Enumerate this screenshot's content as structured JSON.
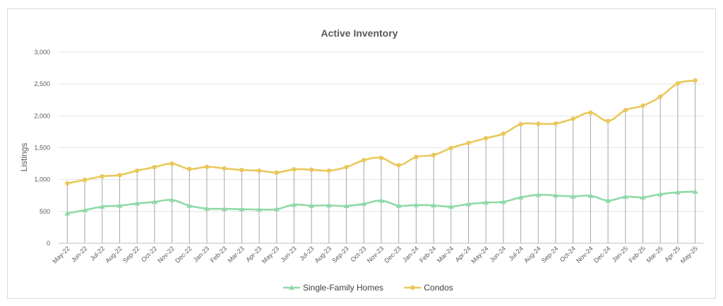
{
  "chart_data": {
    "type": "line",
    "title": "Active Inventory",
    "xlabel": "",
    "ylabel": "Listings",
    "ylim": [
      0,
      3000
    ],
    "yticks": [
      0,
      500,
      1000,
      1500,
      2000,
      2500,
      3000
    ],
    "ytick_labels": [
      "0",
      "500",
      "1,000",
      "1,500",
      "2,000",
      "2,500",
      "3,000"
    ],
    "grid": "horizontal",
    "drop_lines": true,
    "legend_position": "bottom",
    "categories": [
      "May-22",
      "Jun-22",
      "Jul-22",
      "Aug-22",
      "Sep-22",
      "Oct-22",
      "Nov-22",
      "Dec-22",
      "Jan-23",
      "Feb-23",
      "Mar-23",
      "Apr-23",
      "May-23",
      "Jun-23",
      "Jul-23",
      "Aug-23",
      "Sep-23",
      "Oct-23",
      "Nov-23",
      "Dec-23",
      "Jan-24",
      "Feb-24",
      "Mar-24",
      "Apr-24",
      "May-24",
      "Jun-24",
      "Jul-24",
      "Aug-24",
      "Sep-24",
      "Oct-24",
      "Nov-24",
      "Dec-24",
      "Jan-25",
      "Feb-25",
      "Mar-25",
      "Apr-25",
      "May-25"
    ],
    "series": [
      {
        "name": "Single-Family Homes",
        "color": "#8fd9a8",
        "marker": "triangle",
        "values": [
          470,
          520,
          575,
          590,
          625,
          650,
          680,
          590,
          545,
          540,
          535,
          530,
          535,
          605,
          590,
          595,
          585,
          620,
          670,
          590,
          600,
          595,
          575,
          615,
          640,
          650,
          720,
          760,
          750,
          735,
          745,
          670,
          730,
          720,
          770,
          800,
          810
        ]
      },
      {
        "name": "Condos",
        "color": "#e9c85c",
        "marker": "circle",
        "values": [
          940,
          995,
          1050,
          1070,
          1140,
          1195,
          1250,
          1165,
          1200,
          1175,
          1150,
          1140,
          1110,
          1160,
          1155,
          1140,
          1195,
          1305,
          1340,
          1225,
          1355,
          1385,
          1495,
          1575,
          1650,
          1720,
          1870,
          1875,
          1880,
          1955,
          2050,
          1920,
          2090,
          2160,
          2300,
          2510,
          2555
        ]
      }
    ]
  }
}
